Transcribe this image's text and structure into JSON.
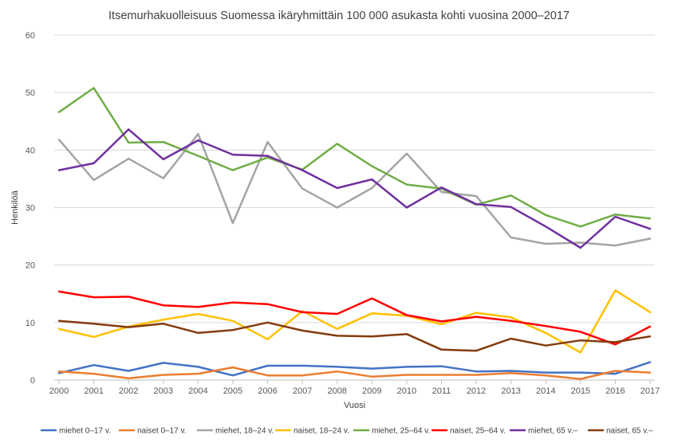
{
  "chart_data": {
    "type": "line",
    "title": "Itsemurhakuolleisuus Suomessa  ikäryhmittäin 100 000 asukasta kohti vuosina 2000–2017",
    "xlabel": "Vuosi",
    "ylabel": "Henkilöä",
    "ylim": [
      0,
      60
    ],
    "yticks": [
      0,
      10,
      20,
      30,
      40,
      50,
      60
    ],
    "grid": true,
    "legend_position": "bottom",
    "categories": [
      "2000",
      "2001",
      "2002",
      "2003",
      "2004",
      "2005",
      "2006",
      "2007",
      "2008",
      "2009",
      "2010",
      "2011",
      "2012",
      "2013",
      "2014",
      "2015",
      "2016",
      "2017"
    ],
    "series": [
      {
        "name": "miehet 0–17 v.",
        "color": "#4472C4",
        "values": [
          1.2,
          2.6,
          1.6,
          3.0,
          2.3,
          0.8,
          2.5,
          2.5,
          2.3,
          2.0,
          2.3,
          2.4,
          1.5,
          1.6,
          1.3,
          1.3,
          1.1,
          3.1
        ]
      },
      {
        "name": "naiset 0–17 v.",
        "color": "#ED7D31",
        "values": [
          1.5,
          1.1,
          0.3,
          0.9,
          1.1,
          2.2,
          0.8,
          0.8,
          1.5,
          0.6,
          0.9,
          0.9,
          0.9,
          1.2,
          0.8,
          0.2,
          1.6,
          1.3
        ]
      },
      {
        "name": "miehet, 18–24 v.",
        "color": "#A5A5A5",
        "values": [
          41.8,
          34.8,
          38.5,
          35.1,
          42.8,
          27.3,
          41.4,
          33.3,
          30.0,
          33.4,
          39.4,
          32.7,
          32.0,
          24.8,
          23.7,
          23.9,
          23.4,
          24.6
        ]
      },
      {
        "name": "naiset, 18–24 v.",
        "color": "#FFC000",
        "values": [
          8.9,
          7.5,
          9.3,
          10.5,
          11.5,
          10.3,
          7.1,
          12.0,
          8.9,
          11.6,
          11.2,
          9.7,
          11.7,
          10.9,
          8.2,
          4.8,
          15.6,
          11.8
        ]
      },
      {
        "name": "miehet, 25–64 v.",
        "color": "#70AD47",
        "values": [
          46.6,
          50.8,
          41.3,
          41.4,
          39.0,
          36.5,
          38.7,
          36.6,
          41.1,
          37.2,
          34.0,
          33.3,
          30.5,
          32.1,
          28.7,
          26.7,
          28.8,
          28.1
        ]
      },
      {
        "name": "naiset, 25–64 v.",
        "color": "#FF0000",
        "values": [
          15.4,
          14.4,
          14.5,
          13.0,
          12.7,
          13.5,
          13.2,
          11.8,
          11.5,
          14.2,
          11.3,
          10.2,
          11.0,
          10.3,
          9.4,
          8.4,
          6.2,
          9.3
        ]
      },
      {
        "name": "miehet, 65 v.–",
        "color": "#7030A0",
        "values": [
          36.5,
          37.7,
          43.6,
          38.4,
          41.7,
          39.2,
          39.0,
          36.5,
          33.4,
          34.9,
          30.0,
          33.5,
          30.6,
          30.1,
          26.7,
          23.0,
          28.4,
          26.3
        ]
      },
      {
        "name": "naiset, 65 v.–",
        "color": "#843C0C",
        "values": [
          10.3,
          9.8,
          9.2,
          9.8,
          8.2,
          8.7,
          10.0,
          8.6,
          7.7,
          7.6,
          8.0,
          5.3,
          5.1,
          7.2,
          6.0,
          6.9,
          6.6,
          7.6
        ]
      }
    ]
  }
}
